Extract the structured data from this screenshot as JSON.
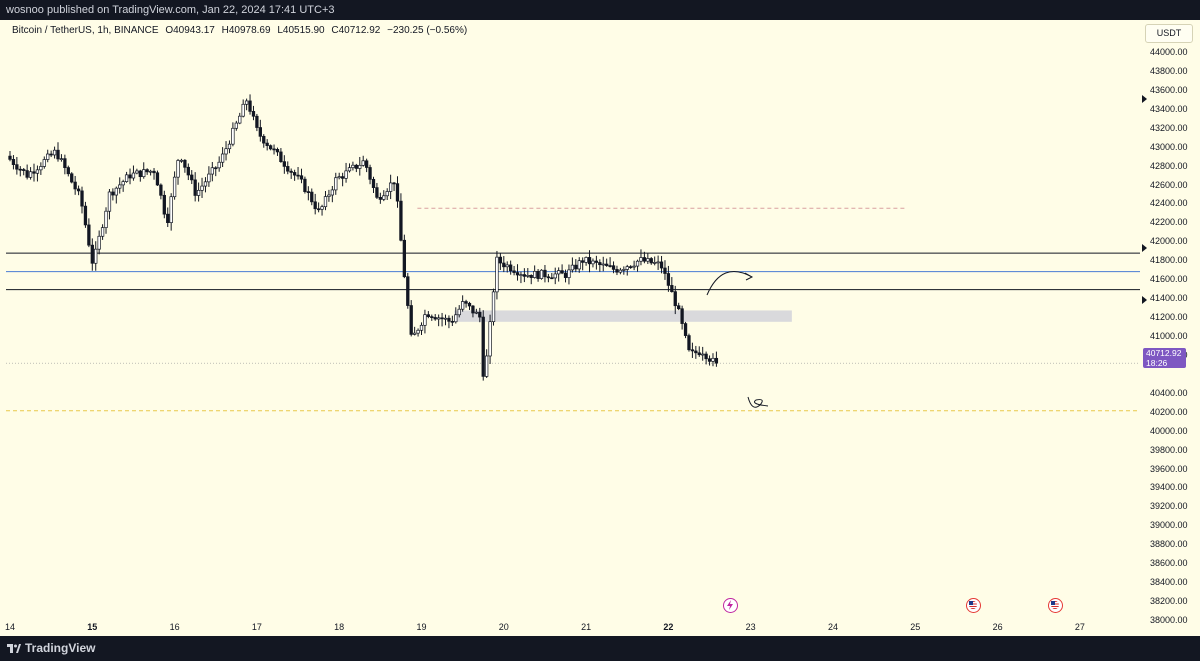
{
  "header": {
    "published": "wosnoo published on TradingView.com, Jan 22, 2024 17:41 UTC+3"
  },
  "legend": {
    "symbol": "Bitcoin / TetherUS, 1h, BINANCE",
    "open": "O40943.17",
    "high": "H40978.69",
    "low": "L40515.90",
    "close": "C40712.92",
    "change": "−230.25 (−0.56%)"
  },
  "currency": "USDT",
  "price_tag": {
    "price": "40712.92",
    "countdown": "18:26"
  },
  "footer": {
    "brand": "TradingView"
  },
  "colors": {
    "background": "#fffde7",
    "candle_up": "#ffffff",
    "candle_down": "#131722",
    "hline_blue": "#4a7bd4",
    "zone": "#d9d9dc",
    "dash_red": "#d9a0a0",
    "dash_yellow": "#e8c84a",
    "price_tag": "#7e57c2"
  },
  "events": [
    {
      "icon": "flash-event-icon",
      "day": "22"
    },
    {
      "icon": "us-flag-icon",
      "day": "25"
    },
    {
      "icon": "us-flag-icon",
      "day": "26"
    }
  ],
  "chart_data": {
    "type": "candlestick",
    "title": "Bitcoin / TetherUS, 1h, BINANCE",
    "ylim": [
      37900,
      44100
    ],
    "y_ticks": [
      "44000.00",
      "43800.00",
      "43600.00",
      "43400.00",
      "43200.00",
      "43000.00",
      "42800.00",
      "42600.00",
      "42400.00",
      "42200.00",
      "42000.00",
      "41800.00",
      "41600.00",
      "41400.00",
      "41200.00",
      "41000.00",
      "40800.00",
      "40400.00",
      "40200.00",
      "40000.00",
      "39800.00",
      "39600.00",
      "39400.00",
      "39200.00",
      "39000.00",
      "38800.00",
      "38600.00",
      "38400.00",
      "38200.00",
      "38000.00"
    ],
    "x_ticks": [
      "14",
      "15",
      "16",
      "17",
      "18",
      "19",
      "20",
      "21",
      "22",
      "23",
      "24",
      "25",
      "26",
      "27"
    ],
    "x_range": [
      "Jan 14",
      "Jan 27"
    ],
    "price_anchors": [
      {
        "day": 14.0,
        "price": 42900
      },
      {
        "day": 14.25,
        "price": 42700
      },
      {
        "day": 14.6,
        "price": 42950
      },
      {
        "day": 14.9,
        "price": 42450
      },
      {
        "day": 15.05,
        "price": 41750
      },
      {
        "day": 15.25,
        "price": 42500
      },
      {
        "day": 15.5,
        "price": 42700
      },
      {
        "day": 15.8,
        "price": 42750
      },
      {
        "day": 15.95,
        "price": 42200
      },
      {
        "day": 16.1,
        "price": 42950
      },
      {
        "day": 16.3,
        "price": 42500
      },
      {
        "day": 16.6,
        "price": 42850
      },
      {
        "day": 16.8,
        "price": 43250
      },
      {
        "day": 16.92,
        "price": 43500
      },
      {
        "day": 17.05,
        "price": 43150
      },
      {
        "day": 17.3,
        "price": 42900
      },
      {
        "day": 17.6,
        "price": 42600
      },
      {
        "day": 17.8,
        "price": 42300
      },
      {
        "day": 18.0,
        "price": 42650
      },
      {
        "day": 18.35,
        "price": 42850
      },
      {
        "day": 18.5,
        "price": 42450
      },
      {
        "day": 18.72,
        "price": 42650
      },
      {
        "day": 18.82,
        "price": 41750
      },
      {
        "day": 18.92,
        "price": 40950
      },
      {
        "day": 19.1,
        "price": 41250
      },
      {
        "day": 19.4,
        "price": 41150
      },
      {
        "day": 19.55,
        "price": 41350
      },
      {
        "day": 19.75,
        "price": 41200
      },
      {
        "day": 19.8,
        "price": 40500
      },
      {
        "day": 19.88,
        "price": 41150
      },
      {
        "day": 19.95,
        "price": 41800
      },
      {
        "day": 20.3,
        "price": 41650
      },
      {
        "day": 20.8,
        "price": 41650
      },
      {
        "day": 21.0,
        "price": 41800
      },
      {
        "day": 21.4,
        "price": 41700
      },
      {
        "day": 21.7,
        "price": 41800
      },
      {
        "day": 21.95,
        "price": 41750
      },
      {
        "day": 22.15,
        "price": 41300
      },
      {
        "day": 22.3,
        "price": 40800
      },
      {
        "day": 22.45,
        "price": 40850
      },
      {
        "day": 22.6,
        "price": 40712.92
      }
    ],
    "last_price": 40712.92,
    "horizontal_lines": [
      {
        "price": 41875,
        "style": "solid",
        "color": "#131722"
      },
      {
        "price": 41680,
        "style": "solid",
        "color": "#4a7bd4"
      },
      {
        "price": 41490,
        "style": "solid",
        "color": "#131722"
      },
      {
        "price": 42350,
        "style": "dashed",
        "color": "#d9a0a0",
        "from_day": 18.95,
        "to_day": 24.9
      },
      {
        "price": 40210,
        "style": "dashed",
        "color": "#e8c84a"
      },
      {
        "price": 40712.92,
        "style": "dotted",
        "color": "#9a9a9a"
      }
    ],
    "zone": {
      "price_low": 41150,
      "price_high": 41270,
      "from_day": 19.4,
      "to_day": 23.5
    },
    "grid": false
  }
}
